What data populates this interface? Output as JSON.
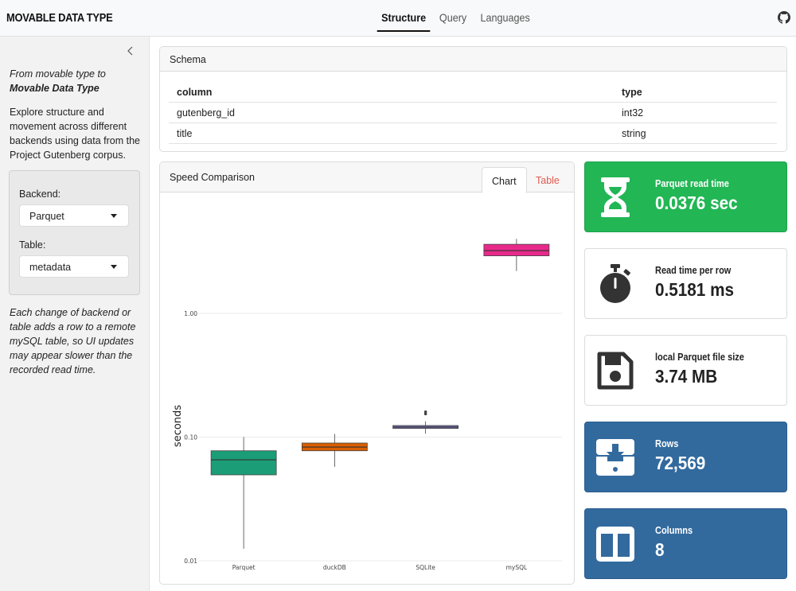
{
  "navbar": {
    "brand": "MOVABLE DATA TYPE",
    "tabs": [
      {
        "label": "Structure",
        "active": true
      },
      {
        "label": "Query",
        "active": false
      },
      {
        "label": "Languages",
        "active": false
      }
    ],
    "github_icon": "github-icon"
  },
  "sidebar": {
    "intro_line1": "From movable type to",
    "intro_line2": "Movable Data Type",
    "description": "Explore structure and movement across different backends using data from the Project Gutenberg corpus.",
    "backend_label": "Backend:",
    "backend_value": "Parquet",
    "table_label": "Table:",
    "table_value": "metadata",
    "note": "Each change of backend or table adds a row to a remote mySQL table, so UI updates may appear slower than the recorded read time."
  },
  "schema": {
    "title": "Schema",
    "headers": [
      "column",
      "type"
    ],
    "rows": [
      [
        "gutenberg_id",
        "int32"
      ],
      [
        "title",
        "string"
      ]
    ]
  },
  "speed": {
    "title": "Speed Comparison",
    "tab_chart": "Chart",
    "tab_table": "Table"
  },
  "chart_data": {
    "type": "box",
    "ylabel": "seconds",
    "yscale": "log",
    "ylim": [
      0.01,
      5
    ],
    "y_ticks": [
      {
        "value": 0.01,
        "label": "0.01"
      },
      {
        "value": 0.1,
        "label": "0.10"
      },
      {
        "value": 1,
        "label": "1.00"
      }
    ],
    "categories": [
      "Parquet",
      "duckDB",
      "SQLite",
      "mySQL"
    ],
    "boxes": [
      {
        "category": "Parquet",
        "min": 0.0125,
        "q1": 0.0495,
        "median": 0.0655,
        "q3": 0.0775,
        "max": 0.1,
        "color": "#1b9e77",
        "outliers": []
      },
      {
        "category": "duckDB",
        "min": 0.0575,
        "q1": 0.0775,
        "median": 0.083,
        "q3": 0.0895,
        "max": 0.106,
        "color": "#d95f02",
        "outliers": []
      },
      {
        "category": "SQLite",
        "min": 0.1065,
        "q1": 0.1175,
        "median": 0.1205,
        "q3": 0.124,
        "max": 0.134,
        "color": "#7570b3",
        "outliers": [
          0.154,
          0.16
        ]
      },
      {
        "category": "mySQL",
        "min": 2.2,
        "q1": 2.92,
        "median": 3.22,
        "q3": 3.62,
        "max": 4.0,
        "color": "#e7298a",
        "outliers": []
      }
    ]
  },
  "value_boxes": [
    {
      "title": "Parquet read time",
      "value": "0.0376 sec",
      "icon": "hourglass-icon",
      "style": "green"
    },
    {
      "title": "Read time per row",
      "value": "0.5181 ms",
      "icon": "stopwatch-icon",
      "style": "white"
    },
    {
      "title": "local Parquet file size",
      "value": "3.74 MB",
      "icon": "floppy-disk-icon",
      "style": "white"
    },
    {
      "title": "Rows",
      "value": "72,569",
      "icon": "tray-download-icon",
      "style": "blue"
    },
    {
      "title": "Columns",
      "value": "8",
      "icon": "columns-icon",
      "style": "blue"
    }
  ]
}
